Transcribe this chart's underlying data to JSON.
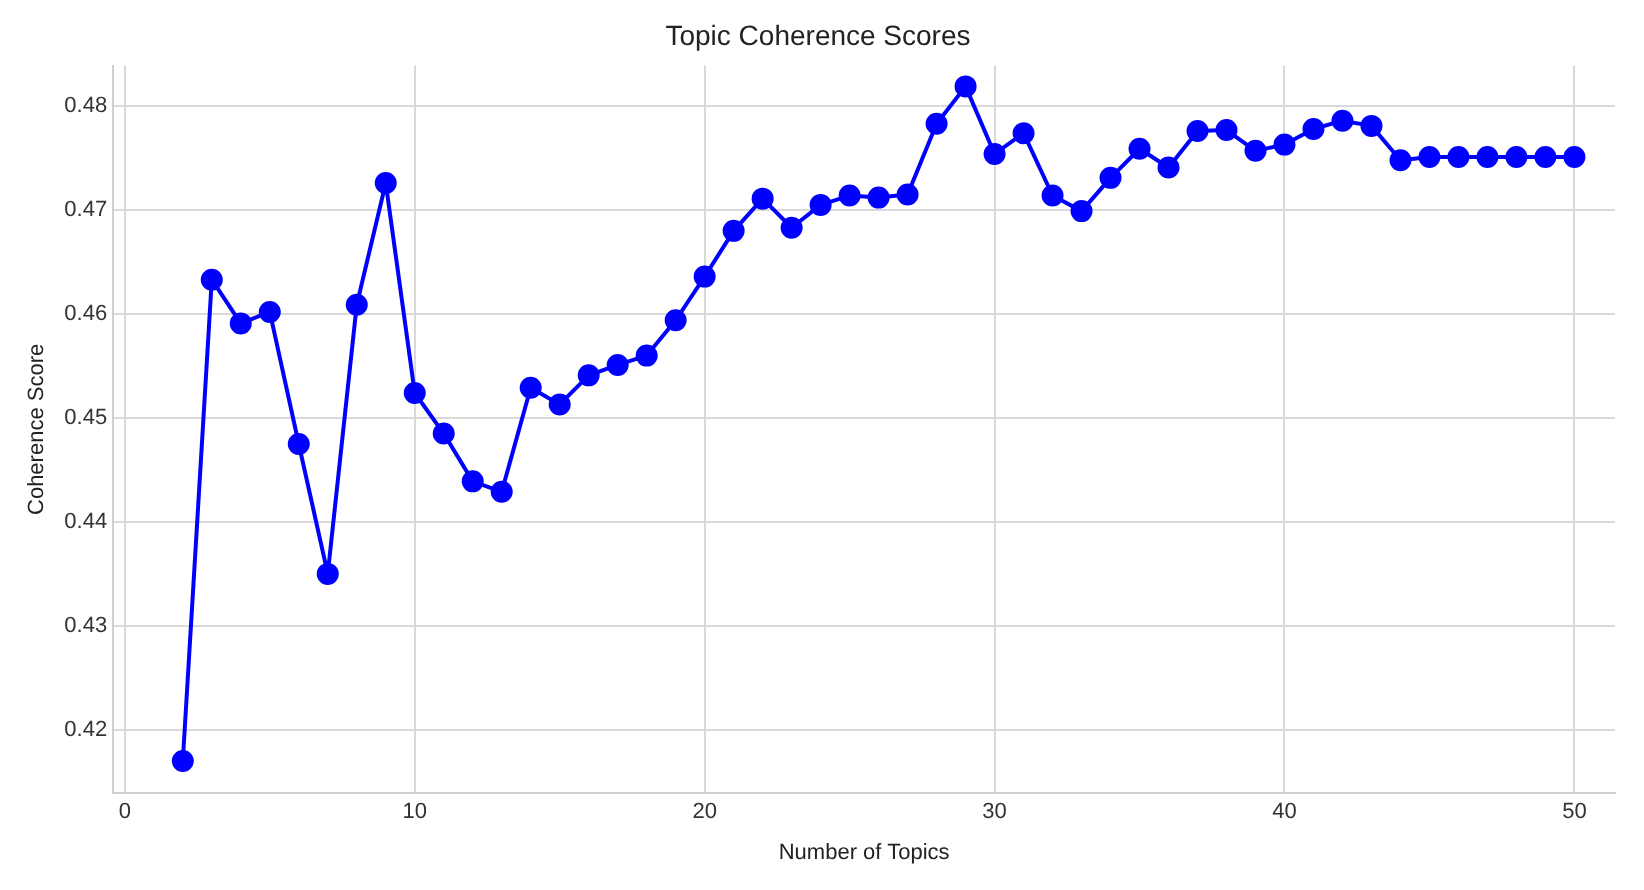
{
  "chart_data": {
    "type": "line",
    "title": "Topic Coherence Scores",
    "xlabel": "Number of Topics",
    "ylabel": "Coherence Score",
    "x": [
      2,
      3,
      4,
      5,
      6,
      7,
      8,
      9,
      10,
      11,
      12,
      13,
      14,
      15,
      16,
      17,
      18,
      19,
      20,
      21,
      22,
      23,
      24,
      25,
      26,
      27,
      28,
      29,
      30,
      31,
      32,
      33,
      34,
      35,
      36,
      37,
      38,
      39,
      40,
      41,
      42,
      43,
      44,
      45,
      46,
      47,
      48,
      49,
      50
    ],
    "series": [
      {
        "color": "#0000ff",
        "values": [
          0.417,
          0.4633,
          0.4591,
          0.4602,
          0.4475,
          0.435,
          0.4609,
          0.4726,
          0.4524,
          0.4485,
          0.4439,
          0.4429,
          0.4529,
          0.4513,
          0.4541,
          0.4551,
          0.456,
          0.4594,
          0.4636,
          0.468,
          0.4711,
          0.4683,
          0.4705,
          0.4714,
          0.4712,
          0.4715,
          0.4783,
          0.4819,
          0.4754,
          0.4774,
          0.4714,
          0.4699,
          0.4731,
          0.4759,
          0.4741,
          0.4776,
          0.4777,
          0.4757,
          0.4763,
          0.4778,
          0.4786,
          0.4781,
          0.4748,
          0.4751,
          0.4751,
          0.4751,
          0.4751,
          0.4751,
          0.4751
        ]
      }
    ],
    "xlim": [
      -0.4,
      51.4
    ],
    "xticks": [
      0,
      10,
      20,
      30,
      40,
      50
    ],
    "ylim": [
      0.4139,
      0.4839
    ],
    "yticks": [
      0.42,
      0.43,
      0.44,
      0.45,
      0.46,
      0.47,
      0.48
    ],
    "grid": true,
    "marker": "circle",
    "line_style": "solid",
    "legend": false
  }
}
